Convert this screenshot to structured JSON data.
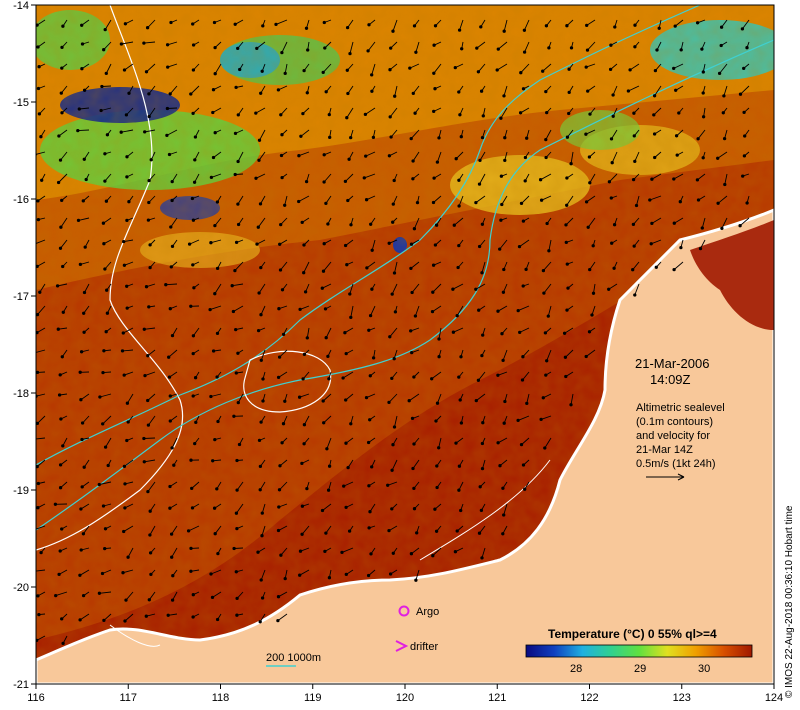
{
  "map": {
    "lon_range": [
      116,
      124
    ],
    "lat_range": [
      -21,
      -14
    ],
    "x_ticks": [
      "116",
      "117",
      "118",
      "119",
      "120",
      "121",
      "122",
      "123",
      "124"
    ],
    "y_ticks": [
      "-14",
      "-15",
      "-16",
      "-17",
      "-18",
      "-19",
      "-20",
      "-21"
    ],
    "colors": {
      "land": "#f8c89a",
      "sst_warm": "#a81e00",
      "sst_mid": "#c84a00",
      "sst_cool": "#e08a00",
      "sst_yellow": "#f0d020",
      "sst_green": "#48d048",
      "sst_cyan": "#20c0d8",
      "sst_blue": "#1040a0",
      "contour_white": "#ffffff",
      "contour_cyan": "#40d0d0",
      "argo": "#e020e0"
    }
  },
  "annotations": {
    "date": "21-Mar-2006",
    "time": "14:09Z",
    "description_lines": [
      "Altimetric sealevel",
      "(0.1m contours)",
      "and velocity for",
      "21-Mar 14Z",
      "0.5m/s (1kt 24h)"
    ]
  },
  "legend": {
    "argo_label": "Argo",
    "drifter_label": "drifter",
    "depth_label": "200  1000m",
    "colorbar_title": "Temperature (°C) 0 55% ql>=4",
    "colorbar_ticks": [
      "28",
      "29",
      "30"
    ],
    "colorbar_colors": [
      "#0a0a80",
      "#1040c0",
      "#20b0e0",
      "#30d090",
      "#60e040",
      "#e0e020",
      "#f0a000",
      "#d85000",
      "#a01800"
    ]
  },
  "credit": "© IMOS 22-Aug-2018 00:36:10 Hobart time"
}
